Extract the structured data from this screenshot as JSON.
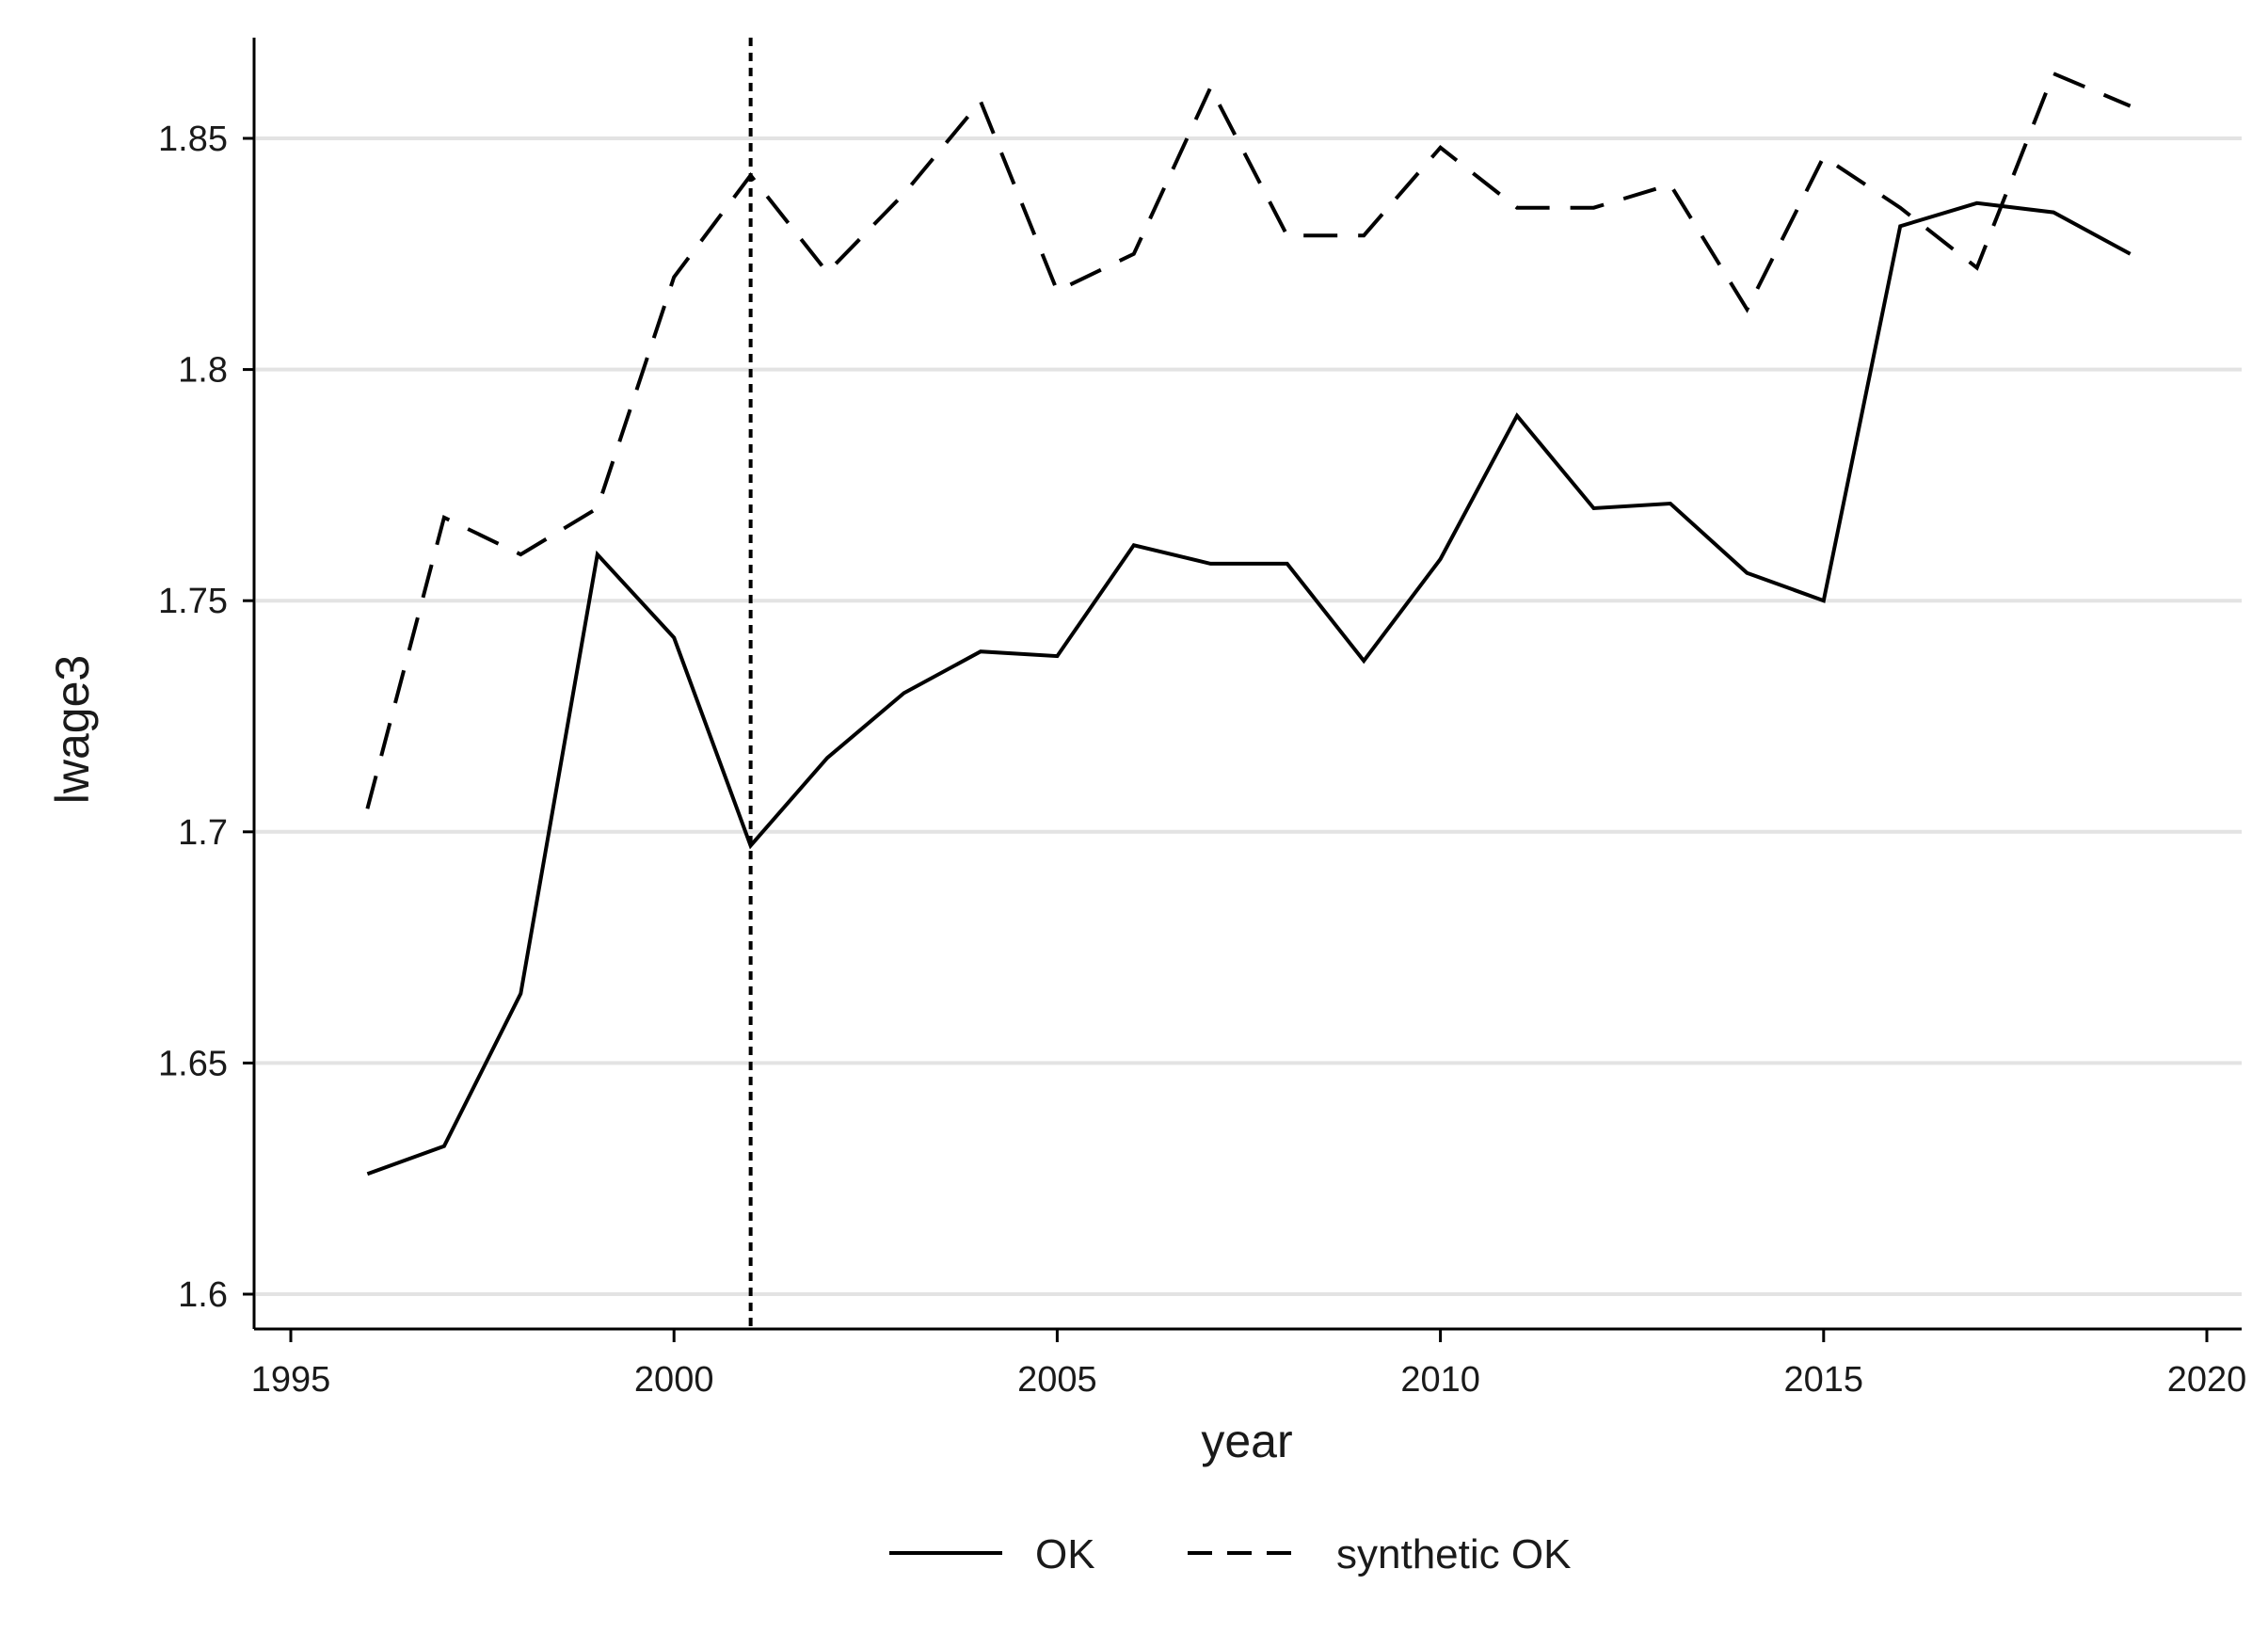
{
  "chart_data": {
    "type": "line",
    "xlabel": "year",
    "ylabel": "lwage3",
    "xlim": [
      1995,
      2020
    ],
    "ylim": [
      1.6,
      1.87
    ],
    "xticks": [
      1995,
      2000,
      2005,
      2010,
      2015,
      2020
    ],
    "yticks": [
      1.6,
      1.65,
      1.7,
      1.75,
      1.8,
      1.85
    ],
    "ytick_labels": [
      "1.6",
      "1.65",
      "1.7",
      "1.75",
      "1.8",
      "1.85"
    ],
    "grid": "horizontal",
    "treatment_year": 2001,
    "x": [
      1996,
      1997,
      1998,
      1999,
      2000,
      2001,
      2002,
      2003,
      2004,
      2005,
      2006,
      2007,
      2008,
      2009,
      2010,
      2011,
      2012,
      2013,
      2014,
      2015,
      2016,
      2017,
      2018,
      2019
    ],
    "series": [
      {
        "name": "OK",
        "style": "solid",
        "color": "#000000",
        "values": [
          1.626,
          1.632,
          1.665,
          1.76,
          1.742,
          1.697,
          1.716,
          1.73,
          1.739,
          1.738,
          1.762,
          1.758,
          1.758,
          1.737,
          1.759,
          1.79,
          1.77,
          1.771,
          1.756,
          1.75,
          1.831,
          1.836,
          1.834,
          1.825
        ]
      },
      {
        "name": "synthetic OK",
        "style": "dashed",
        "color": "#000000",
        "values": [
          1.705,
          1.768,
          1.76,
          1.77,
          1.82,
          1.842,
          1.821,
          1.838,
          1.858,
          1.817,
          1.825,
          1.861,
          1.829,
          1.829,
          1.848,
          1.835,
          1.835,
          1.84,
          1.813,
          1.846,
          1.835,
          1.822,
          1.864,
          1.857
        ]
      }
    ],
    "legend_position": "bottom"
  }
}
